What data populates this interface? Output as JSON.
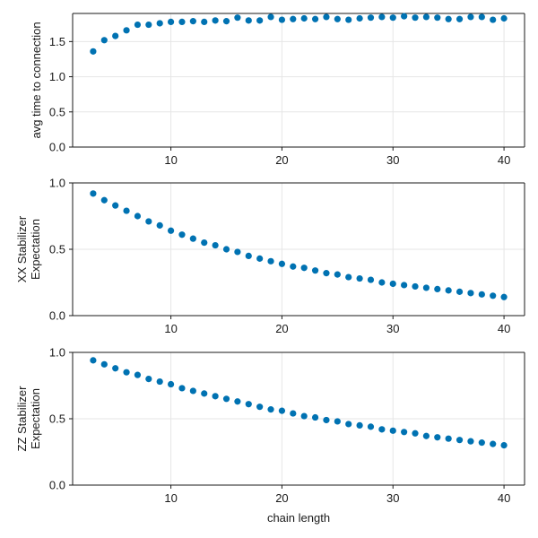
{
  "chart_data": [
    {
      "type": "scatter",
      "xlabel": "",
      "ylabel": "avg time to connection",
      "xlim": [
        1.15,
        41.85
      ],
      "ylim": [
        0,
        1.9
      ],
      "xticks": [
        10,
        20,
        30,
        40
      ],
      "yticks": [
        0.0,
        0.5,
        1.0,
        1.5
      ],
      "ytick_labels": [
        "0.0",
        "0.5",
        "1.0",
        "1.5"
      ],
      "grid": true,
      "color": "#0072b2",
      "x": [
        3,
        4,
        5,
        6,
        7,
        8,
        9,
        10,
        11,
        12,
        13,
        14,
        15,
        16,
        17,
        18,
        19,
        20,
        21,
        22,
        23,
        24,
        25,
        26,
        27,
        28,
        29,
        30,
        31,
        32,
        33,
        34,
        35,
        36,
        37,
        38,
        39,
        40
      ],
      "y": [
        1.36,
        1.52,
        1.58,
        1.66,
        1.74,
        1.74,
        1.76,
        1.78,
        1.78,
        1.79,
        1.78,
        1.8,
        1.79,
        1.84,
        1.8,
        1.8,
        1.85,
        1.81,
        1.82,
        1.83,
        1.82,
        1.85,
        1.82,
        1.81,
        1.83,
        1.84,
        1.85,
        1.84,
        1.86,
        1.84,
        1.85,
        1.84,
        1.82,
        1.82,
        1.85,
        1.85,
        1.81,
        1.83
      ]
    },
    {
      "type": "scatter",
      "xlabel": "",
      "ylabel": "XX Stabilizer\nExpectation",
      "xlim": [
        1.15,
        41.85
      ],
      "ylim": [
        0,
        1.0
      ],
      "xticks": [
        10,
        20,
        30,
        40
      ],
      "yticks": [
        0.0,
        0.5,
        1.0
      ],
      "ytick_labels": [
        "0.0",
        "0.5",
        "1.0"
      ],
      "grid": true,
      "color": "#0072b2",
      "x": [
        3,
        4,
        5,
        6,
        7,
        8,
        9,
        10,
        11,
        12,
        13,
        14,
        15,
        16,
        17,
        18,
        19,
        20,
        21,
        22,
        23,
        24,
        25,
        26,
        27,
        28,
        29,
        30,
        31,
        32,
        33,
        34,
        35,
        36,
        37,
        38,
        39,
        40
      ],
      "y": [
        0.92,
        0.87,
        0.83,
        0.79,
        0.75,
        0.71,
        0.68,
        0.64,
        0.61,
        0.58,
        0.55,
        0.53,
        0.5,
        0.48,
        0.45,
        0.43,
        0.41,
        0.39,
        0.37,
        0.36,
        0.34,
        0.32,
        0.31,
        0.29,
        0.28,
        0.27,
        0.25,
        0.24,
        0.23,
        0.22,
        0.21,
        0.2,
        0.19,
        0.18,
        0.17,
        0.16,
        0.15,
        0.14
      ]
    },
    {
      "type": "scatter",
      "xlabel": "chain length",
      "ylabel": "ZZ Stabilizer\nExpectation",
      "xlim": [
        1.15,
        41.85
      ],
      "ylim": [
        0,
        1.0
      ],
      "xticks": [
        10,
        20,
        30,
        40
      ],
      "yticks": [
        0.0,
        0.5,
        1.0
      ],
      "ytick_labels": [
        "0.0",
        "0.5",
        "1.0"
      ],
      "grid": true,
      "color": "#0072b2",
      "x": [
        3,
        4,
        5,
        6,
        7,
        8,
        9,
        10,
        11,
        12,
        13,
        14,
        15,
        16,
        17,
        18,
        19,
        20,
        21,
        22,
        23,
        24,
        25,
        26,
        27,
        28,
        29,
        30,
        31,
        32,
        33,
        34,
        35,
        36,
        37,
        38,
        39,
        40
      ],
      "y": [
        0.94,
        0.91,
        0.88,
        0.85,
        0.83,
        0.8,
        0.78,
        0.76,
        0.73,
        0.71,
        0.69,
        0.67,
        0.65,
        0.63,
        0.61,
        0.59,
        0.57,
        0.56,
        0.54,
        0.52,
        0.51,
        0.49,
        0.48,
        0.46,
        0.45,
        0.44,
        0.42,
        0.41,
        0.4,
        0.39,
        0.37,
        0.36,
        0.35,
        0.34,
        0.33,
        0.32,
        0.31,
        0.3
      ]
    }
  ]
}
